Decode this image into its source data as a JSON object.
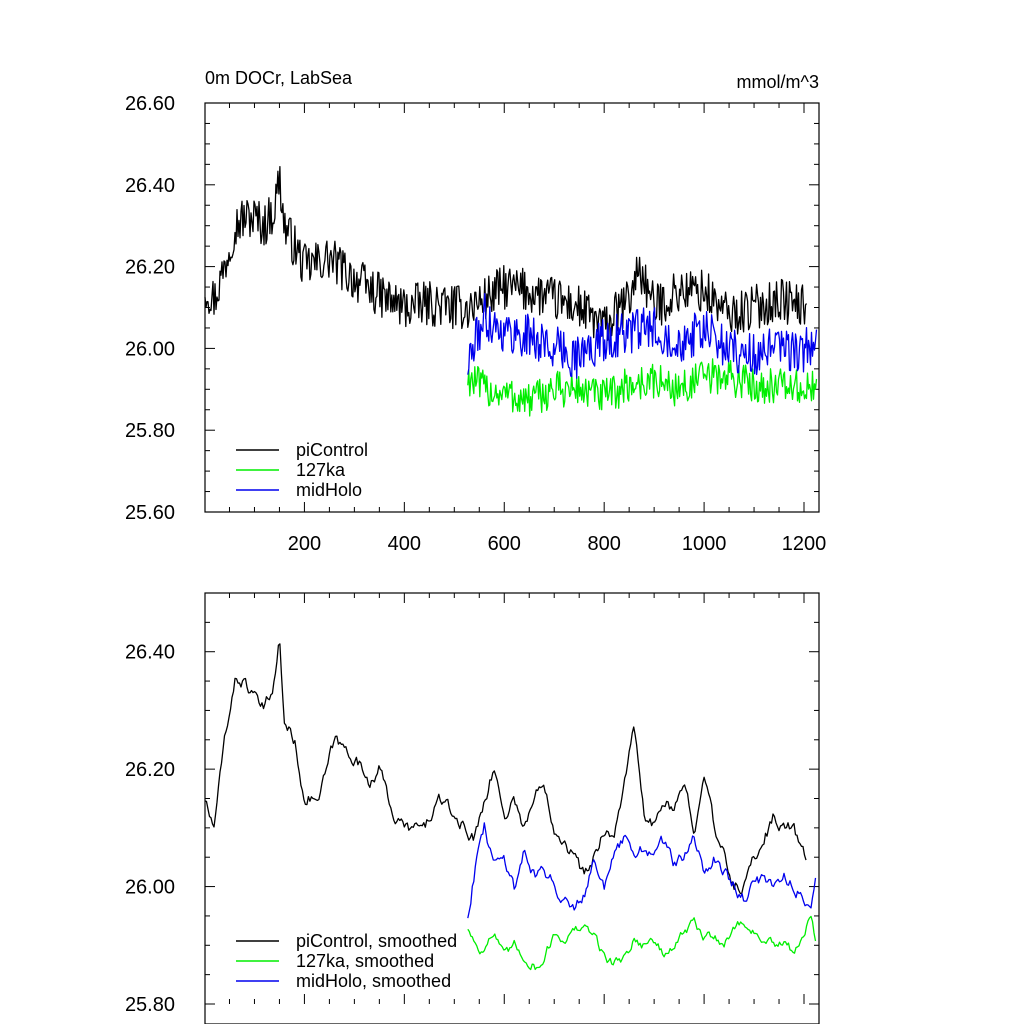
{
  "chart_data": [
    {
      "type": "line",
      "title": "0m DOCr, LabSea",
      "units": "mmol/m^3",
      "xlim": [
        1,
        1230
      ],
      "ylim": [
        25.6,
        26.6
      ],
      "xticks": [
        200,
        400,
        600,
        800,
        1000,
        1200
      ],
      "xtick_labels": [
        "200",
        "400",
        "600",
        "800",
        "1000",
        "1200"
      ],
      "yticks": [
        25.6,
        25.8,
        26.0,
        26.2,
        26.4,
        26.6
      ],
      "ytick_labels": [
        "25.60",
        "25.80",
        "26.00",
        "26.20",
        "26.40",
        "26.60"
      ],
      "legend_position": "bottom-left",
      "series": [
        {
          "name": "piControl",
          "color": "#000000",
          "start": 1,
          "end": 1205,
          "noise": 0.055,
          "x": [
            1,
            20,
            40,
            60,
            80,
            100,
            120,
            140,
            150,
            160,
            180,
            200,
            250,
            300,
            350,
            400,
            450,
            500,
            530,
            560,
            600,
            650,
            700,
            750,
            800,
            850,
            870,
            900,
            950,
            1000,
            1050,
            1100,
            1150,
            1205
          ],
          "y": [
            26.15,
            26.12,
            26.2,
            26.3,
            26.32,
            26.32,
            26.3,
            26.34,
            26.42,
            26.3,
            26.25,
            26.2,
            26.22,
            26.17,
            26.13,
            26.1,
            26.11,
            26.1,
            26.1,
            26.12,
            26.15,
            26.14,
            26.12,
            26.1,
            26.05,
            26.12,
            26.2,
            26.1,
            26.14,
            26.14,
            26.08,
            26.1,
            26.12,
            26.1
          ]
        },
        {
          "name": "127ka",
          "color": "#00ee00",
          "start": 527,
          "end": 1225,
          "noise": 0.045,
          "x": [
            527,
            560,
            600,
            650,
            700,
            750,
            800,
            850,
            900,
            950,
            1000,
            1050,
            1100,
            1150,
            1200,
            1225
          ],
          "y": [
            25.93,
            25.9,
            25.89,
            25.87,
            25.9,
            25.9,
            25.88,
            25.91,
            25.92,
            25.9,
            25.93,
            25.93,
            25.91,
            25.91,
            25.9,
            25.9
          ]
        },
        {
          "name": "midHolo",
          "color": "#0000ee",
          "start": 527,
          "end": 1225,
          "noise": 0.055,
          "x": [
            527,
            560,
            600,
            650,
            700,
            750,
            800,
            850,
            900,
            950,
            1000,
            1050,
            1100,
            1150,
            1200,
            1225
          ],
          "y": [
            25.96,
            26.08,
            26.04,
            26.03,
            26.0,
            25.98,
            26.02,
            26.04,
            26.05,
            26.02,
            26.04,
            26.0,
            25.98,
            26.0,
            25.99,
            26.02
          ]
        }
      ]
    },
    {
      "type": "line",
      "xlim": [
        1,
        1230
      ],
      "ylim": [
        25.8,
        26.5
      ],
      "xticks": [
        200,
        400,
        600,
        800,
        1000,
        1200
      ],
      "yticks": [
        25.8,
        26.0,
        26.2,
        26.4
      ],
      "ytick_labels": [
        "25.80",
        "26.00",
        "26.20",
        "26.40"
      ],
      "legend_position": "bottom-left",
      "series": [
        {
          "name": "piControl, smoothed",
          "color": "#000000",
          "start": 1,
          "end": 1205,
          "noise": 0.02,
          "x": [
            1,
            10,
            20,
            40,
            60,
            80,
            100,
            120,
            140,
            150,
            160,
            180,
            200,
            230,
            260,
            300,
            330,
            350,
            380,
            400,
            440,
            470,
            500,
            520,
            540,
            560,
            580,
            600,
            620,
            640,
            660,
            680,
            700,
            720,
            740,
            760,
            780,
            800,
            820,
            840,
            860,
            880,
            900,
            920,
            940,
            960,
            980,
            1000,
            1020,
            1040,
            1060,
            1080,
            1100,
            1120,
            1140,
            1160,
            1180,
            1205
          ],
          "y": [
            26.15,
            26.12,
            26.1,
            26.25,
            26.35,
            26.35,
            26.32,
            26.3,
            26.35,
            26.42,
            26.28,
            26.25,
            26.15,
            26.15,
            26.25,
            26.22,
            26.18,
            26.2,
            26.12,
            26.1,
            26.1,
            26.15,
            26.12,
            26.1,
            26.08,
            26.15,
            26.2,
            26.12,
            26.15,
            26.1,
            26.15,
            26.18,
            26.1,
            26.08,
            26.05,
            26.02,
            26.05,
            26.1,
            26.08,
            26.18,
            26.27,
            26.12,
            26.1,
            26.15,
            26.12,
            26.18,
            26.1,
            26.2,
            26.1,
            26.05,
            26.0,
            26.0,
            26.05,
            26.08,
            26.12,
            26.1,
            26.1,
            26.04
          ]
        },
        {
          "name": "127ka, smoothed",
          "color": "#00ee00",
          "start": 527,
          "end": 1225,
          "noise": 0.015,
          "x": [
            527,
            550,
            580,
            600,
            620,
            650,
            670,
            700,
            720,
            750,
            780,
            800,
            820,
            840,
            860,
            880,
            900,
            920,
            940,
            960,
            980,
            1000,
            1020,
            1040,
            1060,
            1080,
            1100,
            1120,
            1140,
            1160,
            1180,
            1200,
            1215,
            1225
          ],
          "y": [
            25.93,
            25.89,
            25.92,
            25.88,
            25.9,
            25.87,
            25.86,
            25.92,
            25.91,
            25.93,
            25.92,
            25.88,
            25.87,
            25.88,
            25.91,
            25.9,
            25.91,
            25.88,
            25.9,
            25.92,
            25.94,
            25.91,
            25.92,
            25.9,
            25.93,
            25.94,
            25.92,
            25.91,
            25.9,
            25.9,
            25.89,
            25.92,
            25.95,
            25.9
          ]
        },
        {
          "name": "midHolo, smoothed",
          "color": "#0000ee",
          "start": 527,
          "end": 1225,
          "noise": 0.02,
          "x": [
            527,
            545,
            560,
            580,
            600,
            620,
            640,
            660,
            680,
            700,
            720,
            740,
            760,
            780,
            800,
            820,
            840,
            860,
            880,
            900,
            920,
            940,
            960,
            980,
            1000,
            1020,
            1040,
            1060,
            1080,
            1100,
            1120,
            1140,
            1160,
            1180,
            1200,
            1215,
            1225
          ],
          "y": [
            25.95,
            26.05,
            26.1,
            26.04,
            26.05,
            26.0,
            26.06,
            26.02,
            26.03,
            26.0,
            25.98,
            25.97,
            25.99,
            26.05,
            26.0,
            26.05,
            26.08,
            26.05,
            26.07,
            26.05,
            26.08,
            26.04,
            26.05,
            26.08,
            26.02,
            26.05,
            26.03,
            26.0,
            25.98,
            26.0,
            26.02,
            26.0,
            26.02,
            26.0,
            25.98,
            25.96,
            26.03
          ]
        }
      ]
    }
  ]
}
